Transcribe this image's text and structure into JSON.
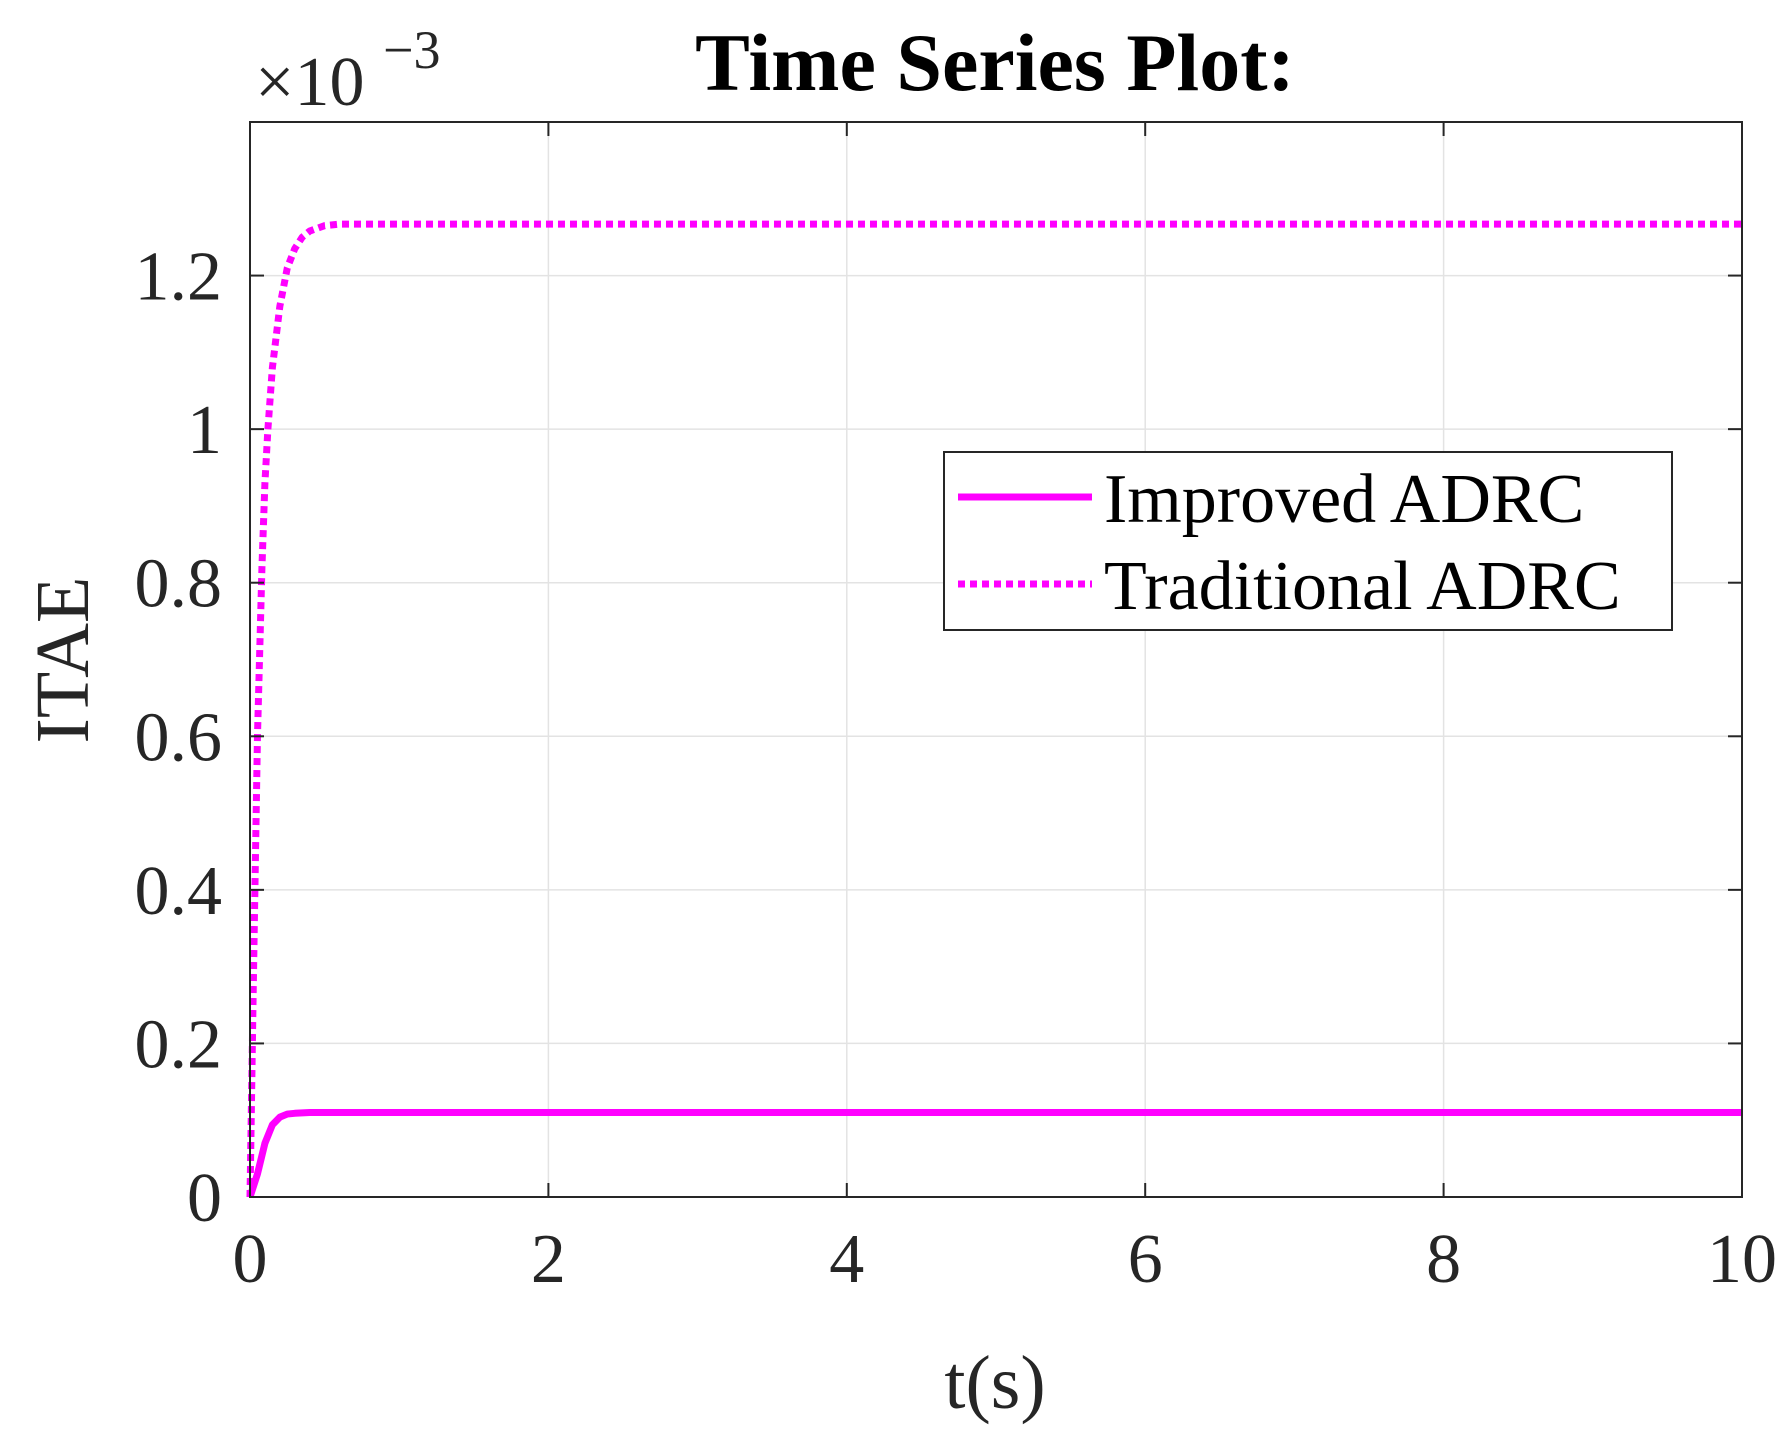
{
  "chart_data": {
    "type": "line",
    "title": "Time Series Plot:",
    "xlabel": "t(s)",
    "ylabel": "ITAE",
    "y_multiplier_label": "×10",
    "y_multiplier_exponent": "−3",
    "xlim": [
      0,
      10
    ],
    "ylim": [
      0,
      1.4
    ],
    "x_ticks": [
      0,
      2,
      4,
      6,
      8,
      10
    ],
    "x_tick_labels": [
      "0",
      "2",
      "4",
      "6",
      "8",
      "10"
    ],
    "y_ticks": [
      0,
      0.2,
      0.4,
      0.6,
      0.8,
      1.0,
      1.2
    ],
    "y_tick_labels": [
      "0",
      "0.2",
      "0.4",
      "0.6",
      "0.8",
      "1",
      "1.2"
    ],
    "grid": true,
    "legend_position": "right",
    "series": [
      {
        "name": "Improved ADRC",
        "style": "solid",
        "color": "#ff00ff",
        "x": [
          0,
          0.05,
          0.1,
          0.15,
          0.2,
          0.25,
          0.3,
          0.4,
          0.5,
          1,
          2,
          4,
          6,
          8,
          10
        ],
        "y": [
          0,
          0.03,
          0.07,
          0.094,
          0.104,
          0.108,
          0.109,
          0.11,
          0.11,
          0.11,
          0.11,
          0.11,
          0.11,
          0.11,
          0.11
        ]
      },
      {
        "name": "Traditional ADRC",
        "style": "dotted",
        "color": "#ff00ff",
        "x": [
          0,
          0.02,
          0.05,
          0.08,
          0.1,
          0.12,
          0.15,
          0.2,
          0.25,
          0.3,
          0.35,
          0.4,
          0.5,
          0.6,
          0.8,
          1,
          2,
          4,
          6,
          8,
          10
        ],
        "y": [
          0,
          0.25,
          0.6,
          0.82,
          0.93,
          1.0,
          1.08,
          1.16,
          1.21,
          1.235,
          1.25,
          1.258,
          1.265,
          1.267,
          1.267,
          1.267,
          1.267,
          1.267,
          1.267,
          1.267,
          1.267
        ]
      }
    ]
  }
}
